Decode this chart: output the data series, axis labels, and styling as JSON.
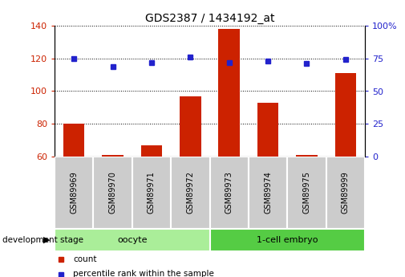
{
  "title": "GDS2387 / 1434192_at",
  "categories": [
    "GSM89969",
    "GSM89970",
    "GSM89971",
    "GSM89972",
    "GSM89973",
    "GSM89974",
    "GSM89975",
    "GSM89999"
  ],
  "counts": [
    80,
    61,
    67,
    97,
    138,
    93,
    61,
    111
  ],
  "percentile_ranks": [
    75,
    69,
    72,
    76,
    72,
    73,
    71,
    74
  ],
  "bar_color": "#cc2200",
  "dot_color": "#2222cc",
  "ylim_left": [
    60,
    140
  ],
  "ylim_right": [
    0,
    100
  ],
  "yticks_left": [
    60,
    80,
    100,
    120,
    140
  ],
  "yticks_right": [
    0,
    25,
    50,
    75,
    100
  ],
  "yticklabels_right": [
    "0",
    "25",
    "50",
    "75",
    "100%"
  ],
  "groups": [
    {
      "label": "oocyte",
      "start": 0,
      "end": 3,
      "color": "#aaee99"
    },
    {
      "label": "1-cell embryo",
      "start": 4,
      "end": 7,
      "color": "#55cc44"
    }
  ],
  "group_row_label": "development stage",
  "legend_items": [
    {
      "label": "count",
      "color": "#cc2200"
    },
    {
      "label": "percentile rank within the sample",
      "color": "#2222cc"
    }
  ],
  "grid_color": "black",
  "background_color": "#ffffff",
  "tick_label_color_left": "#cc2200",
  "tick_label_color_right": "#2222cc",
  "cat_box_color": "#cccccc",
  "cat_box_edge_color": "#ffffff"
}
